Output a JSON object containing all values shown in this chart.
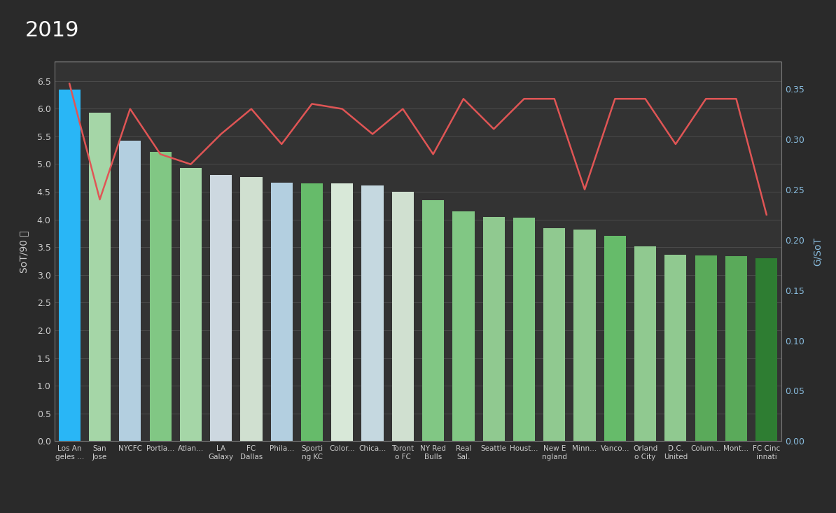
{
  "title": "2019",
  "title_color": "#ffffff",
  "background_color": "#2a2a2a",
  "plot_bg_color": "#333333",
  "ylabel_left": "SoT/90 图",
  "ylabel_right": "G/SoT",
  "teams": [
    "Los An\ngeles ...",
    "San\nJose",
    "NYCFC",
    "Portla...",
    "Atlan...",
    "LA\nGalaxy",
    "FC\nDallas",
    "Phila...",
    "Sporti\nng KC",
    "Color...",
    "Chica...",
    "Toront\no FC",
    "NY Red\nBulls",
    "Real\nSal.",
    "Seattle",
    "Houst...",
    "New E\nngland",
    "Minn...",
    "Vanco...",
    "Orland\no City",
    "D.C.\nUnited",
    "Colum...",
    "Mont...",
    "FC Cinc\ninnati"
  ],
  "sot90": [
    6.34,
    5.93,
    5.42,
    5.22,
    4.93,
    4.8,
    4.76,
    4.67,
    4.65,
    4.65,
    4.62,
    4.5,
    4.35,
    4.15,
    4.04,
    4.03,
    3.85,
    3.82,
    3.7,
    3.52,
    3.37,
    3.35,
    3.34,
    3.3
  ],
  "gsot": [
    0.355,
    0.24,
    0.33,
    0.285,
    0.275,
    0.305,
    0.33,
    0.295,
    0.335,
    0.33,
    0.305,
    0.33,
    0.285,
    0.34,
    0.31,
    0.34,
    0.34,
    0.25,
    0.34,
    0.34,
    0.295,
    0.34,
    0.34,
    0.225
  ],
  "bar_colors": [
    "#29b6f6",
    "#a5d6a7",
    "#b3cfe0",
    "#81c784",
    "#a5d6a7",
    "#cdd8e0",
    "#d0e0d0",
    "#b3cfe0",
    "#66bb6a",
    "#d8e8d8",
    "#c5d8e0",
    "#d0e0d0",
    "#81c784",
    "#81c784",
    "#90c990",
    "#81c784",
    "#90c990",
    "#90c990",
    "#66bb6a",
    "#90c990",
    "#90c990",
    "#5aaa5a",
    "#5aaa5a",
    "#2e7d32"
  ],
  "line_color": "#e05555",
  "ylim_left": [
    0,
    6.85
  ],
  "ylim_right": [
    0,
    0.377
  ],
  "yticks_left": [
    0.0,
    0.5,
    1.0,
    1.5,
    2.0,
    2.5,
    3.0,
    3.5,
    4.0,
    4.5,
    5.0,
    5.5,
    6.0,
    6.5
  ],
  "yticks_right": [
    0.0,
    0.05,
    0.1,
    0.15,
    0.2,
    0.25,
    0.3,
    0.35
  ],
  "grid_color": "#555555",
  "spine_color": "#777777",
  "tick_color": "#cccccc",
  "right_tick_color": "#88bbdd"
}
